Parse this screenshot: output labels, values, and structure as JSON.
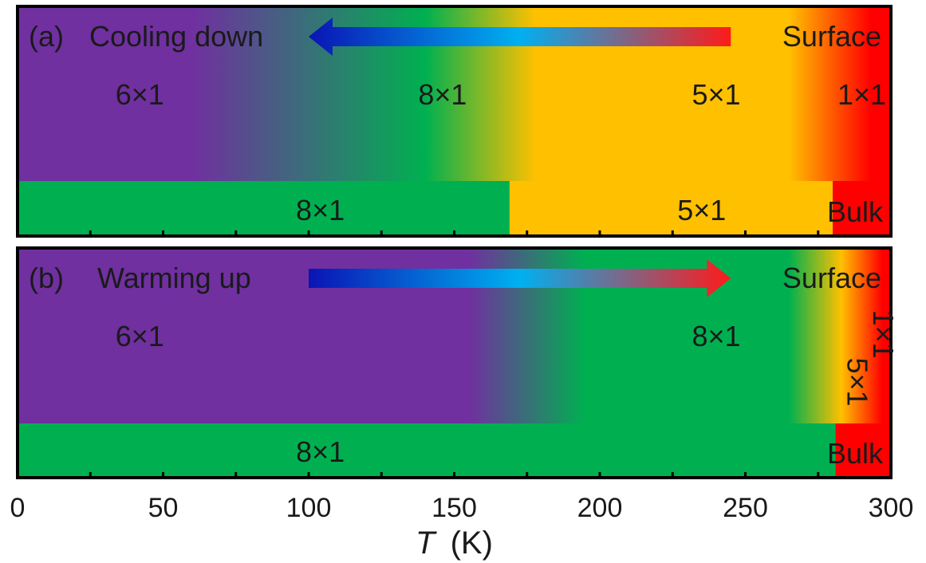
{
  "chart_data": {
    "type": "phase-diagram",
    "x_axis": {
      "label_italic": "T",
      "label_unit": "(K)",
      "range": [
        0,
        300
      ],
      "major_ticks": [
        0,
        50,
        100,
        150,
        200,
        250,
        300
      ],
      "tick_labels": [
        "0",
        "50",
        "100",
        "150",
        "200",
        "250",
        "300"
      ],
      "minor_ticks": [
        25,
        75,
        125,
        175,
        225,
        275
      ]
    },
    "panels": [
      {
        "id": "a",
        "panel_label": "(a)",
        "title": "Cooling down",
        "arrow_direction": "left",
        "arrow_range_K": [
          100,
          245
        ],
        "surface_label": "Surface",
        "bulk_label": "Bulk",
        "surface_phases": [
          {
            "phase": "6×1",
            "label_T": 42
          },
          {
            "phase": "8×1",
            "label_T": 146
          },
          {
            "phase": "5×1",
            "label_T": 240
          },
          {
            "phase": "1×1",
            "label_T": 290
          }
        ],
        "surface_color_stops": [
          {
            "T": 0,
            "color": "#7030a0"
          },
          {
            "T": 60,
            "color": "#7030a0"
          },
          {
            "T": 140,
            "color": "#00b050"
          },
          {
            "T": 178,
            "color": "#ffc000"
          },
          {
            "T": 265,
            "color": "#ffc000"
          },
          {
            "T": 293,
            "color": "#ff0000"
          },
          {
            "T": 300,
            "color": "#ff0000"
          }
        ],
        "bulk_phases": [
          {
            "phase": "8×1",
            "from": 0,
            "to": 169,
            "color": "#00b050",
            "label_T": 104
          },
          {
            "phase": "5×1",
            "from": 169,
            "to": 280,
            "color": "#ffc000",
            "label_T": 235
          },
          {
            "phase": "",
            "from": 280,
            "to": 300,
            "color": "#ff0000"
          }
        ]
      },
      {
        "id": "b",
        "panel_label": "(b)",
        "title": "Warming up",
        "arrow_direction": "right",
        "arrow_range_K": [
          100,
          245
        ],
        "surface_label": "Surface",
        "bulk_label": "Bulk",
        "surface_phases": [
          {
            "phase": "6×1",
            "label_T": 42
          },
          {
            "phase": "8×1",
            "label_T": 240
          },
          {
            "phase": "5×1",
            "label_T": 285,
            "vertical": true
          },
          {
            "phase": "1×1",
            "label_T": 294,
            "vertical": true
          }
        ],
        "surface_color_stops": [
          {
            "T": 0,
            "color": "#7030a0"
          },
          {
            "T": 155,
            "color": "#7030a0"
          },
          {
            "T": 195,
            "color": "#00b050"
          },
          {
            "T": 265,
            "color": "#00b050"
          },
          {
            "T": 283,
            "color": "#ffc000"
          },
          {
            "T": 297,
            "color": "#ff0000"
          },
          {
            "T": 300,
            "color": "#ff0000"
          }
        ],
        "bulk_phases": [
          {
            "phase": "8×1",
            "from": 0,
            "to": 281,
            "color": "#00b050",
            "label_T": 104
          },
          {
            "phase": "",
            "from": 281,
            "to": 300,
            "color": "#ff0000"
          }
        ]
      }
    ],
    "arrow_gradient": [
      "#0a14b4",
      "#00b0f0",
      "#ff1a1a"
    ]
  }
}
